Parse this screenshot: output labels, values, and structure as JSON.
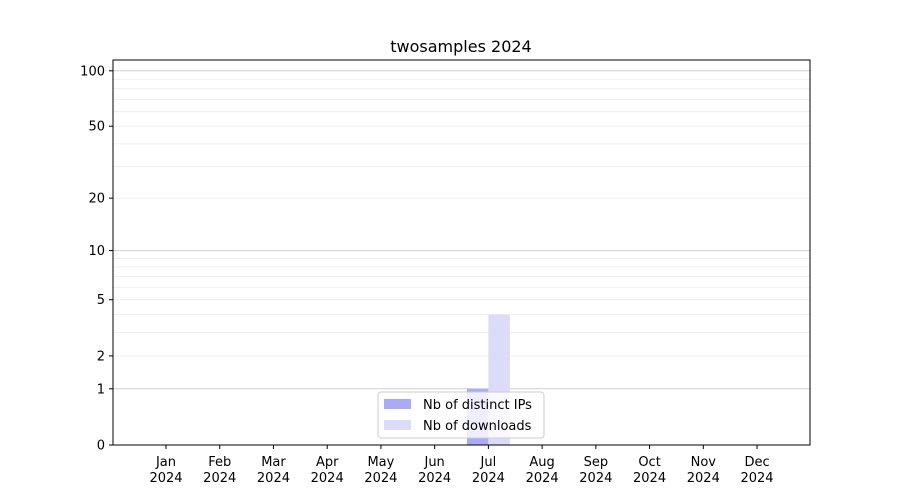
{
  "chart_data": {
    "type": "bar",
    "title": "twosamples 2024",
    "xlabel": "",
    "ylabel": "",
    "yscale": "log(1+y)",
    "ylim": [
      0,
      114
    ],
    "y_ticks": [
      0,
      1,
      2,
      5,
      10,
      20,
      50,
      100
    ],
    "grid": true,
    "legend_position": "lower center",
    "categories": [
      "Jan\n2024",
      "Feb\n2024",
      "Mar\n2024",
      "Apr\n2024",
      "May\n2024",
      "Jun\n2024",
      "Jul\n2024",
      "Aug\n2024",
      "Sep\n2024",
      "Oct\n2024",
      "Nov\n2024",
      "Dec\n2024"
    ],
    "series": [
      {
        "name": "Nb of distinct IPs",
        "color": "#aaaaf8",
        "values": [
          0,
          0,
          0,
          0,
          0,
          0,
          1,
          0,
          0,
          0,
          0,
          0
        ]
      },
      {
        "name": "Nb of downloads",
        "color": "#dcdcfa",
        "values": [
          0,
          0,
          0,
          0,
          0,
          0,
          4,
          0,
          0,
          0,
          0,
          0
        ]
      }
    ]
  }
}
